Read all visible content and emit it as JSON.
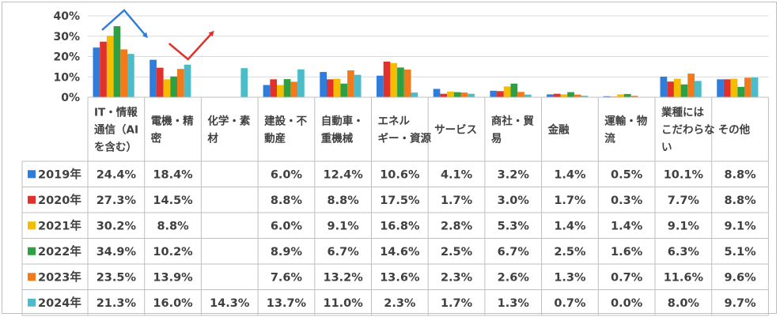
{
  "chart_data": {
    "type": "bar",
    "title": "",
    "xlabel": "",
    "ylabel": "",
    "ylim": [
      0,
      40
    ],
    "yticks": [
      "0%",
      "10%",
      "20%",
      "30%",
      "40%"
    ],
    "grid": true,
    "legend": "data-table-left",
    "categories": [
      "IT・情報通信（AIを含む）",
      "電機・精密",
      "化学・素材",
      "建設・不動産",
      "自動車・重機械",
      "エネルギー・資源",
      "サービス",
      "商社・貿易",
      "金融",
      "運輸・物流",
      "業種にはこだわらない",
      "その他"
    ],
    "category_lines": [
      [
        "IT・情報",
        "通信（AI",
        "を含む）"
      ],
      [
        "電機・精",
        "密"
      ],
      [
        "化学・素",
        "材"
      ],
      [
        "建設・不",
        "動産"
      ],
      [
        "自動車・",
        "重機械"
      ],
      [
        "エネル",
        "ギー・資源"
      ],
      [
        "サービス"
      ],
      [
        "商社・貿",
        "易"
      ],
      [
        "金融"
      ],
      [
        "運輸・物",
        "流"
      ],
      [
        "業種には",
        "こだわらな",
        "い"
      ],
      [
        "その他"
      ]
    ],
    "series": [
      {
        "name": "2019年",
        "color": "#2E7CDB",
        "values": [
          24.4,
          18.4,
          null,
          6.0,
          12.4,
          10.6,
          4.1,
          3.2,
          1.4,
          0.5,
          10.1,
          8.8
        ],
        "labels": [
          "24.4%",
          "18.4%",
          "",
          "6.0%",
          "12.4%",
          "10.6%",
          "4.1%",
          "3.2%",
          "1.4%",
          "0.5%",
          "10.1%",
          "8.8%"
        ]
      },
      {
        "name": "2020年",
        "color": "#E0322B",
        "values": [
          27.3,
          14.5,
          null,
          8.8,
          8.8,
          17.5,
          1.7,
          3.0,
          1.7,
          0.3,
          7.7,
          8.8
        ],
        "labels": [
          "27.3%",
          "14.5%",
          "",
          "8.8%",
          "8.8%",
          "17.5%",
          "1.7%",
          "3.0%",
          "1.7%",
          "0.3%",
          "7.7%",
          "8.8%"
        ]
      },
      {
        "name": "2021年",
        "color": "#F5BC00",
        "values": [
          30.2,
          8.8,
          null,
          6.0,
          9.1,
          16.8,
          2.8,
          5.3,
          1.4,
          1.4,
          9.1,
          9.1
        ],
        "labels": [
          "30.2%",
          "8.8%",
          "",
          "6.0%",
          "9.1%",
          "16.8%",
          "2.8%",
          "5.3%",
          "1.4%",
          "1.4%",
          "9.1%",
          "9.1%"
        ]
      },
      {
        "name": "2022年",
        "color": "#2EA043",
        "values": [
          34.9,
          10.2,
          null,
          8.9,
          6.7,
          14.6,
          2.5,
          6.7,
          2.5,
          1.6,
          6.3,
          5.1
        ],
        "labels": [
          "34.9%",
          "10.2%",
          "",
          "8.9%",
          "6.7%",
          "14.6%",
          "2.5%",
          "6.7%",
          "2.5%",
          "1.6%",
          "6.3%",
          "5.1%"
        ]
      },
      {
        "name": "2023年",
        "color": "#F27A1A",
        "values": [
          23.5,
          13.9,
          null,
          7.6,
          13.2,
          13.6,
          2.3,
          2.6,
          1.3,
          0.7,
          11.6,
          9.6
        ],
        "labels": [
          "23.5%",
          "13.9%",
          "",
          "7.6%",
          "13.2%",
          "13.6%",
          "2.3%",
          "2.6%",
          "1.3%",
          "0.7%",
          "11.6%",
          "9.6%"
        ]
      },
      {
        "name": "2024年",
        "color": "#4BBCC8",
        "values": [
          21.3,
          16.0,
          14.3,
          13.7,
          11.0,
          2.3,
          1.7,
          1.3,
          0.7,
          0.0,
          8.0,
          9.7
        ],
        "labels": [
          "21.3%",
          "16.0%",
          "14.3%",
          "13.7%",
          "11.0%",
          "2.3%",
          "1.7%",
          "1.3%",
          "0.7%",
          "0.0%",
          "8.0%",
          "9.7%"
        ]
      }
    ],
    "annotations": [
      {
        "type": "arrow",
        "meaning": "increase-then-decrease",
        "category": "IT・情報通信（AIを含む）",
        "color": "#2E7CDB"
      },
      {
        "type": "arrow",
        "meaning": "decrease-then-increase",
        "category": "電機・精密",
        "color": "#E0322B"
      }
    ]
  }
}
